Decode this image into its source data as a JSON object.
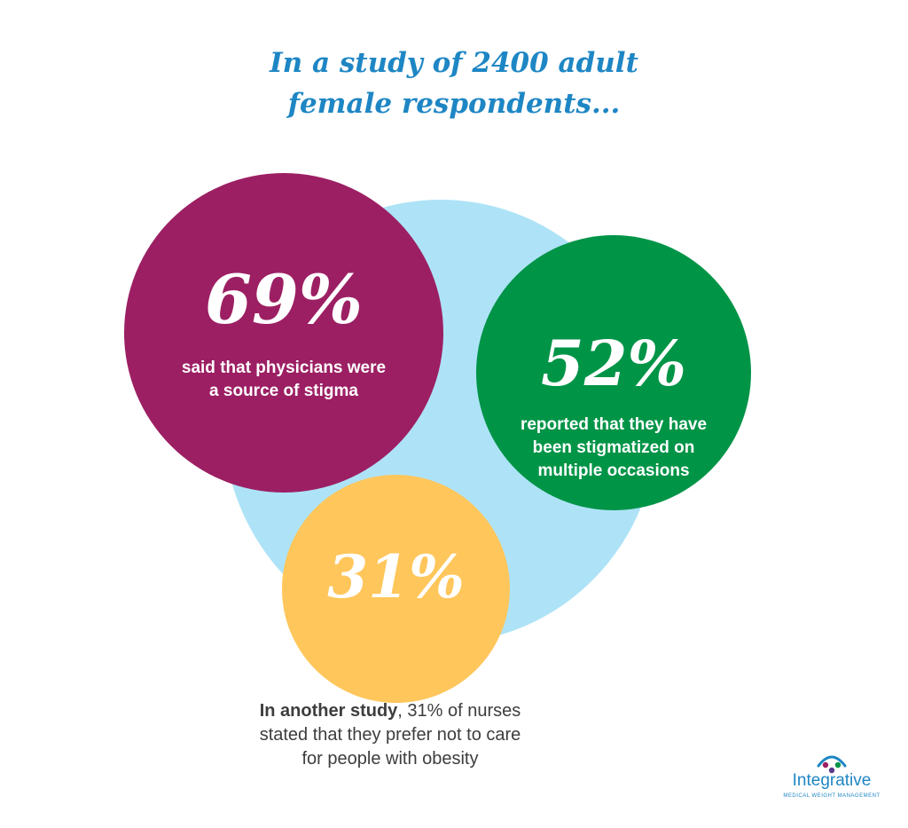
{
  "title": {
    "line1": "In a study of 2400 adult",
    "line2": "female respondents..."
  },
  "stats": [
    {
      "value": "69%",
      "lines": [
        "said that physicians were",
        "a source of stigma"
      ],
      "color": "#9c1f63"
    },
    {
      "value": "52%",
      "lines": [
        "reported that they have",
        "been stigmatized on",
        "multiple occasions"
      ],
      "color": "#009447"
    },
    {
      "value": "31%",
      "color": "#ffc65b"
    }
  ],
  "note": {
    "bold": "In another study",
    "rest1": ", 31% of nurses",
    "line2": "stated that they prefer not to care",
    "line3": "for people with obesity"
  },
  "logo": {
    "name": "Integrative",
    "tagline": "MEDICAL WEIGHT MANAGEMENT",
    "icon": "people-arc-icon"
  },
  "colors": {
    "title": "#1e86c4",
    "background_circle": "#aee3f7",
    "note_text": "#3d3d3d"
  }
}
